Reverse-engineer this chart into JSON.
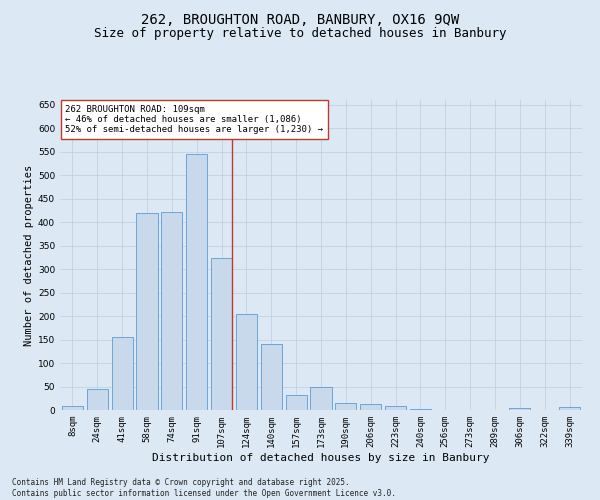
{
  "title1": "262, BROUGHTON ROAD, BANBURY, OX16 9QW",
  "title2": "Size of property relative to detached houses in Banbury",
  "xlabel": "Distribution of detached houses by size in Banbury",
  "ylabel": "Number of detached properties",
  "categories": [
    "8sqm",
    "24sqm",
    "41sqm",
    "58sqm",
    "74sqm",
    "91sqm",
    "107sqm",
    "124sqm",
    "140sqm",
    "157sqm",
    "173sqm",
    "190sqm",
    "206sqm",
    "223sqm",
    "240sqm",
    "256sqm",
    "273sqm",
    "289sqm",
    "306sqm",
    "322sqm",
    "339sqm"
  ],
  "values": [
    8,
    44,
    155,
    420,
    422,
    544,
    324,
    204,
    140,
    32,
    48,
    14,
    12,
    9,
    3,
    0,
    0,
    0,
    5,
    0,
    6
  ],
  "bar_color": "#c9d9ec",
  "bar_edge_color": "#5b9bd5",
  "vline_x_idx": 6,
  "vline_color": "#c0392b",
  "annotation_text": "262 BROUGHTON ROAD: 109sqm\n← 46% of detached houses are smaller (1,086)\n52% of semi-detached houses are larger (1,230) →",
  "annotation_box_color": "#ffffff",
  "annotation_box_edge": "#c0392b",
  "ylim": [
    0,
    660
  ],
  "yticks": [
    0,
    50,
    100,
    150,
    200,
    250,
    300,
    350,
    400,
    450,
    500,
    550,
    600,
    650
  ],
  "background_color": "#dce9f5",
  "footnote": "Contains HM Land Registry data © Crown copyright and database right 2025.\nContains public sector information licensed under the Open Government Licence v3.0.",
  "title1_fontsize": 10,
  "title2_fontsize": 9,
  "xlabel_fontsize": 8,
  "ylabel_fontsize": 7.5,
  "tick_fontsize": 6.5,
  "footnote_fontsize": 5.5
}
